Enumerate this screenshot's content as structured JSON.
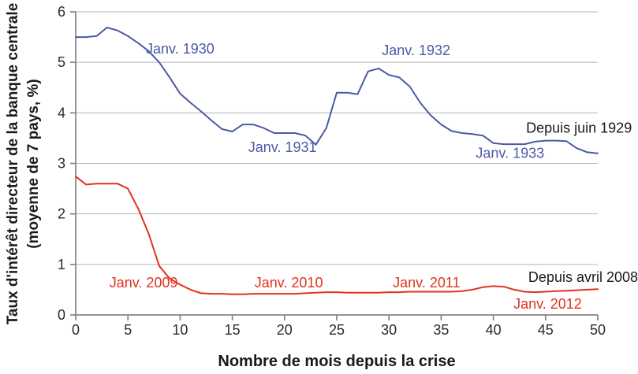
{
  "figure": {
    "x_title": "Nombre de mois depuis la crise",
    "y_title_line1": "Taux d'intérêt directeur de la banque centrale",
    "y_title_line2": "(moyenne de 7 pays, %)"
  },
  "colors": {
    "series_1929": "#4a5aa8",
    "series_2008": "#e0331f",
    "dark_text": "#1a1a1a",
    "grid": "#b3b3b3",
    "axis": "#848484",
    "tick_text": "#2b2b2b"
  },
  "chart_data": {
    "type": "line",
    "title": "",
    "xlabel": "Nombre de mois depuis la crise",
    "ylabel": "Taux d'intérêt directeur de la banque centrale (moyenne de 7 pays, %)",
    "xlim": [
      0,
      50
    ],
    "ylim": [
      0,
      6
    ],
    "x_ticks": [
      0,
      5,
      10,
      15,
      20,
      25,
      30,
      35,
      40,
      45,
      50
    ],
    "y_ticks": [
      0,
      1,
      2,
      3,
      4,
      5,
      6
    ],
    "grid": "horizontal",
    "legend_position": "none",
    "x": [
      0,
      1,
      2,
      3,
      4,
      5,
      6,
      7,
      8,
      9,
      10,
      11,
      12,
      13,
      14,
      15,
      16,
      17,
      18,
      19,
      20,
      21,
      22,
      23,
      24,
      25,
      26,
      27,
      28,
      29,
      30,
      31,
      32,
      33,
      34,
      35,
      36,
      37,
      38,
      39,
      40,
      41,
      42,
      43,
      44,
      45,
      46,
      47,
      48,
      49,
      50
    ],
    "series": [
      {
        "name": "Depuis juin 1929",
        "color_key": "series_1929",
        "values": [
          5.5,
          5.5,
          5.52,
          5.69,
          5.63,
          5.52,
          5.38,
          5.22,
          5.0,
          4.7,
          4.38,
          4.2,
          4.03,
          3.85,
          3.68,
          3.63,
          3.77,
          3.77,
          3.7,
          3.6,
          3.6,
          3.6,
          3.55,
          3.37,
          3.7,
          4.4,
          4.4,
          4.37,
          4.82,
          4.88,
          4.75,
          4.7,
          4.52,
          4.2,
          3.95,
          3.77,
          3.64,
          3.6,
          3.58,
          3.55,
          3.4,
          3.38,
          3.38,
          3.38,
          3.43,
          3.45,
          3.45,
          3.44,
          3.3,
          3.22,
          3.2
        ]
      },
      {
        "name": "Depuis avril 2008",
        "color_key": "series_2008",
        "values": [
          2.74,
          2.58,
          2.6,
          2.6,
          2.6,
          2.5,
          2.1,
          1.6,
          0.97,
          0.72,
          0.6,
          0.5,
          0.43,
          0.42,
          0.42,
          0.41,
          0.41,
          0.42,
          0.42,
          0.42,
          0.42,
          0.42,
          0.43,
          0.44,
          0.45,
          0.45,
          0.44,
          0.44,
          0.44,
          0.44,
          0.45,
          0.45,
          0.46,
          0.46,
          0.46,
          0.46,
          0.46,
          0.47,
          0.5,
          0.55,
          0.57,
          0.56,
          0.5,
          0.46,
          0.45,
          0.46,
          0.47,
          0.48,
          0.49,
          0.5,
          0.51
        ]
      }
    ],
    "annotations": [
      {
        "text": "Janv. 1930",
        "month": 10.0,
        "value": 5.27,
        "color_key": "series_1929"
      },
      {
        "text": "Janv. 1931",
        "month": 19.8,
        "value": 3.32,
        "color_key": "series_1929"
      },
      {
        "text": "Janv. 1932",
        "month": 32.6,
        "value": 5.24,
        "color_key": "series_1929"
      },
      {
        "text": "Janv. 1933",
        "month": 41.6,
        "value": 3.2,
        "color_key": "series_1929"
      },
      {
        "text": "Depuis juin 1929",
        "month": 48.2,
        "value": 3.7,
        "color_key": "dark_text"
      },
      {
        "text": "Janv. 2009",
        "month": 6.5,
        "value": 0.64,
        "color_key": "series_2008"
      },
      {
        "text": "Janv. 2010",
        "month": 20.4,
        "value": 0.64,
        "color_key": "series_2008"
      },
      {
        "text": "Janv. 2011",
        "month": 33.6,
        "value": 0.64,
        "color_key": "series_2008"
      },
      {
        "text": "Janv. 2012",
        "month": 45.2,
        "value": 0.22,
        "color_key": "series_2008"
      },
      {
        "text": "Depuis avril 2008",
        "month": 48.6,
        "value": 0.75,
        "color_key": "dark_text"
      }
    ]
  }
}
